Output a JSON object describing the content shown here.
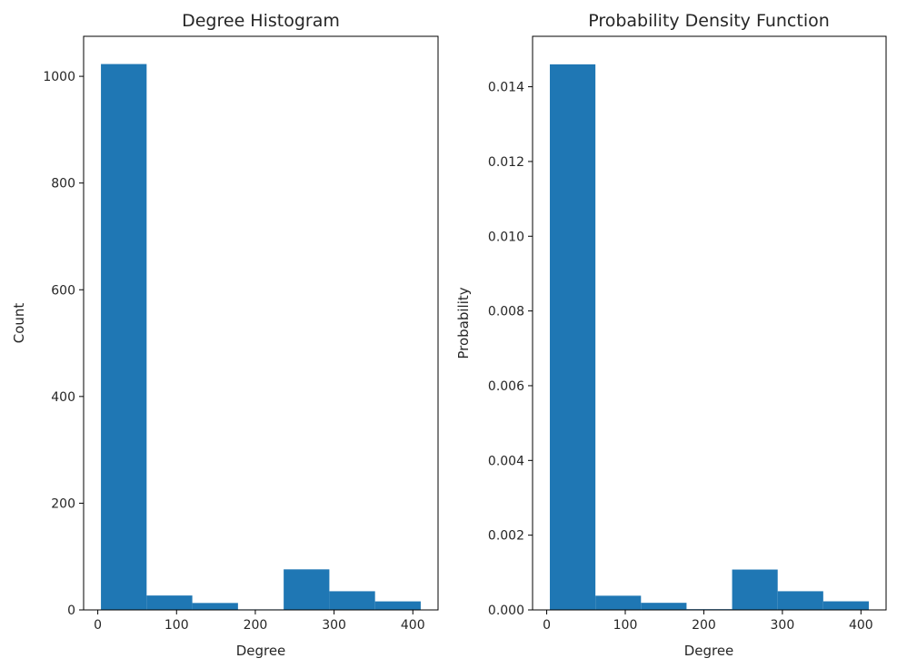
{
  "figure": {
    "bar_color": "#1f77b4",
    "background": "#ffffff"
  },
  "chart_data": [
    {
      "type": "bar",
      "title": "Degree Histogram",
      "xlabel": "Degree",
      "ylabel": "Count",
      "bin_edges": [
        4,
        62,
        120,
        178,
        236,
        294,
        352,
        410
      ],
      "values": [
        1023,
        27,
        13,
        1,
        76,
        35,
        16
      ],
      "xlim": [
        -18,
        432
      ],
      "ylim": [
        0,
        1075
      ],
      "xticks": [
        0,
        100,
        200,
        300,
        400
      ],
      "xtick_labels": [
        "0",
        "100",
        "200",
        "300",
        "400"
      ],
      "yticks": [
        0,
        200,
        400,
        600,
        800,
        1000
      ],
      "ytick_labels": [
        "0",
        "200",
        "400",
        "600",
        "800",
        "1000"
      ],
      "grid": false,
      "legend": null
    },
    {
      "type": "bar",
      "title": "Probability Density Function",
      "xlabel": "Degree",
      "ylabel": "Probability",
      "bin_edges": [
        4,
        62,
        120,
        178,
        236,
        294,
        352,
        410
      ],
      "values": [
        0.0146,
        0.00038,
        0.00019,
        2e-05,
        0.00108,
        0.0005,
        0.00023
      ],
      "xlim": [
        -18,
        432
      ],
      "ylim": [
        0,
        0.01535
      ],
      "xticks": [
        0,
        100,
        200,
        300,
        400
      ],
      "xtick_labels": [
        "0",
        "100",
        "200",
        "300",
        "400"
      ],
      "yticks": [
        0,
        0.002,
        0.004,
        0.006,
        0.008,
        0.01,
        0.012,
        0.014
      ],
      "ytick_labels": [
        "0.000",
        "0.002",
        "0.004",
        "0.006",
        "0.008",
        "0.010",
        "0.012",
        "0.014"
      ],
      "grid": false,
      "legend": null
    }
  ]
}
